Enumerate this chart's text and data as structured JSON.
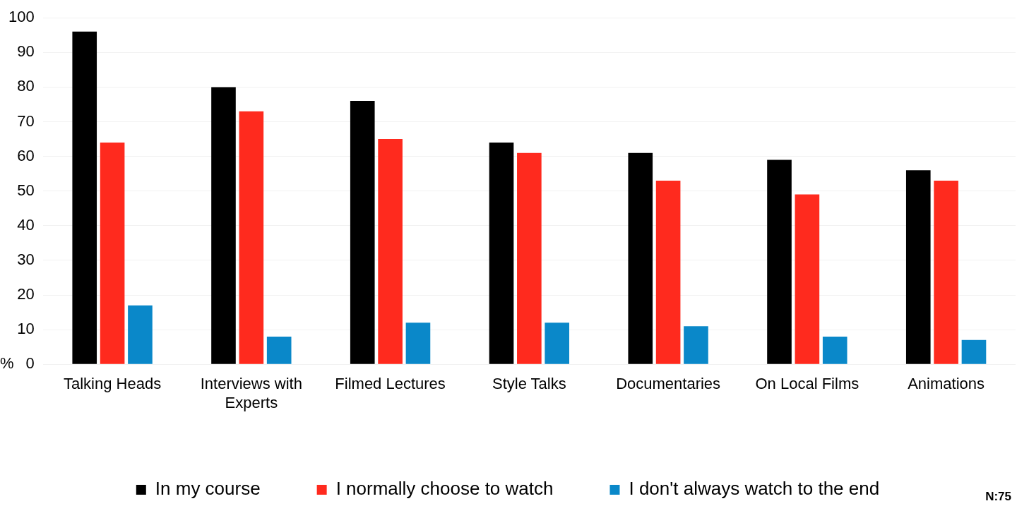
{
  "chart_data": {
    "type": "bar",
    "ylabel": "%",
    "categories": [
      "Talking Heads",
      "Interviews with Experts",
      "Filmed Lectures",
      "Style Talks",
      "Documentaries",
      "On Local Films",
      "Animations"
    ],
    "series": [
      {
        "name": "In my course",
        "color": "#000000",
        "values": [
          96,
          80,
          76,
          64,
          61,
          59,
          56
        ]
      },
      {
        "name": "I normally choose to watch",
        "color": "#ff2a1e",
        "values": [
          64,
          73,
          65,
          61,
          53,
          49,
          53
        ]
      },
      {
        "name": "I don't always watch to the end",
        "color": "#0a88c9",
        "values": [
          17,
          8,
          12,
          12,
          11,
          8,
          7
        ]
      }
    ],
    "ylim": [
      0,
      100
    ],
    "yticks": [
      0,
      10,
      20,
      30,
      40,
      50,
      60,
      70,
      80,
      90,
      100
    ],
    "grid": "y",
    "legend": "bottom",
    "annotations": [
      "N:75"
    ]
  }
}
